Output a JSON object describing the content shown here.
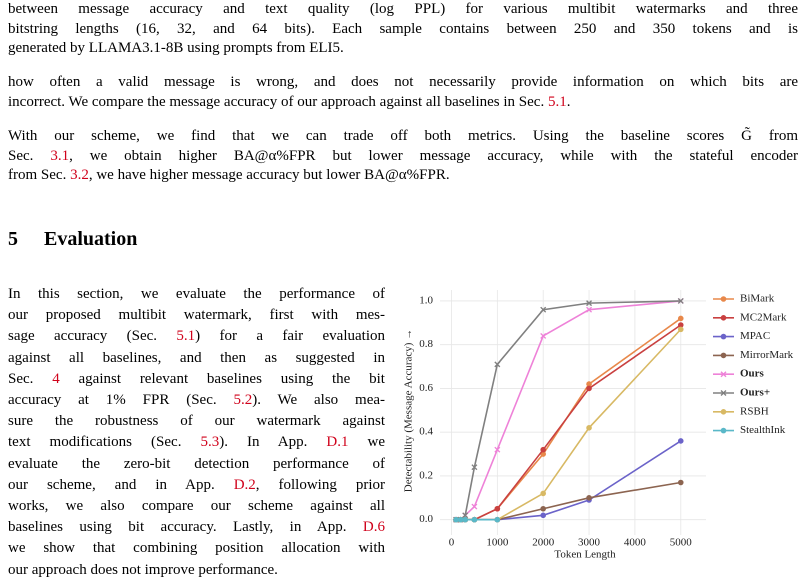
{
  "intro": {
    "paragraphs": [
      {
        "lines": [
          [
            "between message accuracy and text quality (log PPL) for various multibit watermarks and three"
          ],
          [
            "bitstring lengths (16, 32, and 64 bits). Each sample contains between 250 and 350 tokens and is"
          ],
          [
            "generated by LLAMA3.1-8B using prompts from ELI5."
          ]
        ]
      },
      {
        "lines": [
          [
            "how often a valid message is wrong, and does not necessarily provide information on which bits are"
          ],
          [
            "incorrect. We compare the message accuracy of our approach against all baselines in Sec. ",
            {
              "link": "5.1"
            },
            "."
          ]
        ]
      },
      {
        "lines": [
          [
            "With our scheme, we find that we can trade off both metrics. Using the baseline scores G̃ from"
          ],
          [
            "Sec. ",
            {
              "link": "3.1"
            },
            ", we obtain higher BA@α%FPR but lower message accuracy, while with the stateful encoder"
          ],
          [
            "from Sec. ",
            {
              "link": "3.2"
            },
            ", we have higher message accuracy but lower BA@α%FPR."
          ]
        ]
      }
    ]
  },
  "section": {
    "number": "5",
    "title": "Evaluation",
    "lines": [
      [
        "In this section, we evaluate the performance of"
      ],
      [
        "our proposed multibit watermark, first with mes-"
      ],
      [
        "sage accuracy (Sec. ",
        {
          "link": "5.1"
        },
        ") for a fair evaluation"
      ],
      [
        "against all baselines, and then as suggested in"
      ],
      [
        "Sec. ",
        {
          "link": "4"
        },
        " against relevant baselines using the bit"
      ],
      [
        "accuracy at 1% FPR (Sec. ",
        {
          "link": "5.2"
        },
        "). We also mea-"
      ],
      [
        "sure the robustness of our watermark against"
      ],
      [
        "text modifications (Sec. ",
        {
          "link": "5.3"
        },
        "). In App. ",
        {
          "link": "D.1"
        },
        " we"
      ],
      [
        "evaluate the zero-bit detection performance of"
      ],
      [
        "our scheme, and in App. ",
        {
          "link": "D.2"
        },
        ", following prior"
      ],
      [
        "works, we also compare our scheme against all"
      ],
      [
        "baselines using bit accuracy. Lastly, in App. ",
        {
          "link": "D.6"
        }
      ],
      [
        "we show that combining position allocation with"
      ],
      [
        "our approach does not improve performance."
      ]
    ]
  },
  "chart_data": {
    "type": "line",
    "x_label": "Token Length",
    "y_label": "Detectability (Message Accuracy) →",
    "x": [
      100,
      200,
      300,
      500,
      1000,
      2000,
      3000,
      5000
    ],
    "xlim": [
      -250,
      5550
    ],
    "ylim": [
      -0.07,
      1.05
    ],
    "xticks": [
      0,
      1000,
      2000,
      3000,
      4000,
      5000
    ],
    "yticks": [
      {
        "value": 0,
        "label": "0.0"
      },
      0.2,
      0.4,
      0.6,
      0.8,
      {
        "value": 1,
        "label": "1.0"
      }
    ],
    "grid": true,
    "legend": "right",
    "series": [
      {
        "name": "BiMark",
        "color": "#e8884a",
        "marker": "o",
        "values": [
          0,
          0,
          0,
          0,
          0.05,
          0.3,
          0.62,
          0.92
        ]
      },
      {
        "name": "MC2Mark",
        "color": "#c94040",
        "marker": "o",
        "values": [
          0,
          0,
          0,
          0,
          0.05,
          0.32,
          0.6,
          0.89
        ]
      },
      {
        "name": "MPAC",
        "color": "#6b63c9",
        "marker": "o",
        "values": [
          0,
          0,
          0,
          0,
          0,
          0.02,
          0.09,
          0.36
        ]
      },
      {
        "name": "MirrorMark",
        "color": "#8c6450",
        "marker": "o",
        "values": [
          0,
          0,
          0,
          0,
          0,
          0.05,
          0.1,
          0.17
        ]
      },
      {
        "name": "Ours",
        "color": "#ee82d8",
        "marker": "x",
        "bold": true,
        "values": [
          0,
          0,
          0.02,
          0.06,
          0.32,
          0.84,
          0.96,
          1.0
        ]
      },
      {
        "name": "Ours+",
        "color": "#808080",
        "marker": "x",
        "bold": true,
        "values": [
          0,
          0,
          0.02,
          0.24,
          0.71,
          0.96,
          0.99,
          1.0
        ]
      },
      {
        "name": "RSBH",
        "color": "#d8b964",
        "marker": "o",
        "values": [
          0,
          0,
          0,
          0,
          0,
          0.12,
          0.42,
          0.87
        ]
      },
      {
        "name": "StealthInk",
        "color": "#5ab8c8",
        "marker": "o",
        "values": [
          0,
          0,
          0,
          0,
          0,
          null,
          null,
          null
        ]
      }
    ]
  }
}
